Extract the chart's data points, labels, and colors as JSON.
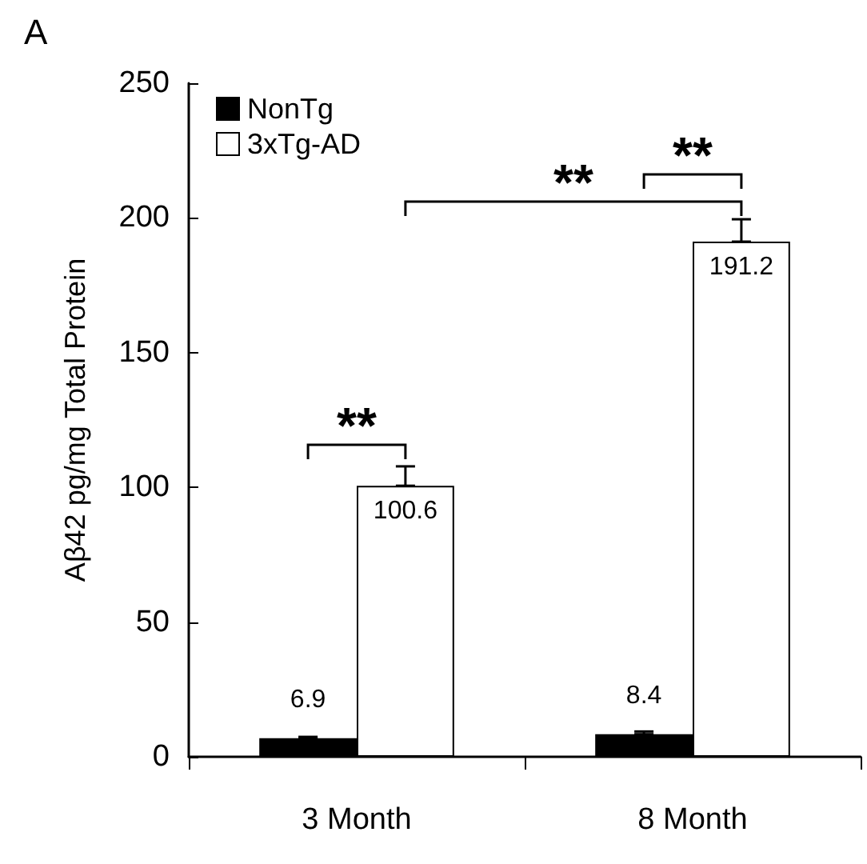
{
  "chart_data": {
    "type": "bar",
    "title": "A",
    "ylabel": "Aβ42 pg/mg Total Protein",
    "categories": [
      "3 Month",
      "8 Month"
    ],
    "series": [
      {
        "name": "NonTg",
        "color": "#000000",
        "values": [
          6.9,
          8.4
        ],
        "errors": [
          [
            6.9,
            7.4
          ],
          [
            8.4,
            9.4
          ]
        ]
      },
      {
        "name": "3xTg-AD",
        "color": "#ffffff",
        "values": [
          100.6,
          191.2
        ],
        "errors": [
          [
            100.6,
            107.8
          ],
          [
            191.2,
            199.5
          ]
        ]
      }
    ],
    "ylim": [
      0,
      250
    ],
    "yticks": [
      0,
      50,
      100,
      150,
      200,
      250
    ],
    "grid": false,
    "legend": "top left",
    "data_labels": true,
    "annotations": [
      "**",
      "**",
      "**"
    ]
  }
}
